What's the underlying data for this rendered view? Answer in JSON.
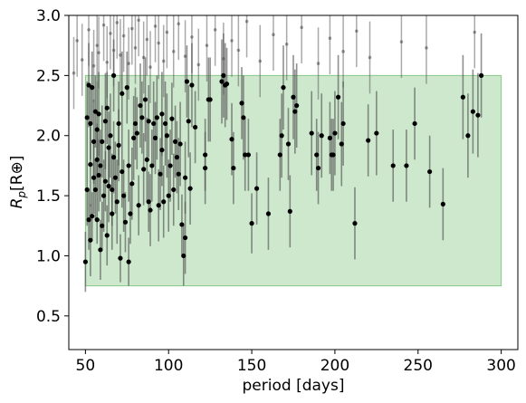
{
  "chart_data": {
    "type": "scatter",
    "xlabel": "period [days]",
    "ylabel_main": "R",
    "ylabel_sub": "p",
    "ylabel_unit": "[R⊕]",
    "xlim": [
      40,
      310
    ],
    "ylim": [
      0.22,
      3.0
    ],
    "xticks": [
      50,
      100,
      150,
      200,
      250,
      300
    ],
    "yticks": [
      0.5,
      1.0,
      1.5,
      2.0,
      2.5,
      3.0
    ],
    "ytick_labels": [
      "0.5",
      "1.0",
      "1.5",
      "2.0",
      "2.5",
      "3.0"
    ],
    "grid": false,
    "legend": "none",
    "region": {
      "x": [
        50,
        300
      ],
      "y": [
        0.75,
        2.5
      ],
      "color": "#2ca02c",
      "opacity": 0.24
    },
    "colors": {
      "points": "#000000",
      "errorbars": "#555555",
      "region": "#2ca02c"
    },
    "points": [
      [
        50,
        0.95,
        0.25
      ],
      [
        51,
        1.55,
        0.3
      ],
      [
        51,
        2.15,
        0.3
      ],
      [
        52,
        1.3,
        0.25
      ],
      [
        52,
        2.42,
        0.35
      ],
      [
        53,
        1.13,
        0.3
      ],
      [
        53,
        1.76,
        0.35
      ],
      [
        53,
        2.1,
        0.3
      ],
      [
        54,
        1.33,
        0.2
      ],
      [
        54,
        2.4,
        0.3
      ],
      [
        55,
        1.65,
        0.3
      ],
      [
        55,
        1.95,
        0.35
      ],
      [
        56,
        1.55,
        0.25
      ],
      [
        56,
        2.2,
        0.3
      ],
      [
        57,
        1.3,
        0.2
      ],
      [
        57,
        1.8,
        0.3
      ],
      [
        57,
        2.05,
        0.4
      ],
      [
        58,
        1.67,
        0.3
      ],
      [
        58,
        2.18,
        0.35
      ],
      [
        59,
        1.05,
        0.25
      ],
      [
        59,
        1.75,
        0.3
      ],
      [
        60,
        1.25,
        0.2
      ],
      [
        60,
        1.95,
        0.3
      ],
      [
        61,
        1.5,
        0.3
      ],
      [
        62,
        1.62,
        0.25
      ],
      [
        62,
        2.12,
        0.4
      ],
      [
        63,
        1.17,
        0.25
      ],
      [
        63,
        2.23,
        0.3
      ],
      [
        64,
        1.58,
        0.3
      ],
      [
        64,
        1.9,
        0.3
      ],
      [
        65,
        2.0,
        0.35
      ],
      [
        66,
        1.35,
        0.3
      ],
      [
        66,
        1.55,
        0.3
      ],
      [
        67,
        1.82,
        0.3
      ],
      [
        67,
        2.5,
        0.3
      ],
      [
        68,
        1.65,
        0.3
      ],
      [
        69,
        1.45,
        0.35
      ],
      [
        70,
        1.92,
        0.3
      ],
      [
        70,
        2.1,
        0.35
      ],
      [
        71,
        0.98,
        0.2
      ],
      [
        72,
        1.7,
        0.3
      ],
      [
        72,
        2.35,
        0.35
      ],
      [
        73,
        1.5,
        0.3
      ],
      [
        74,
        1.28,
        0.25
      ],
      [
        75,
        2.4,
        0.3
      ],
      [
        76,
        0.95,
        0.2
      ],
      [
        76,
        1.75,
        0.3
      ],
      [
        77,
        1.35,
        0.25
      ],
      [
        78,
        1.6,
        0.3
      ],
      [
        79,
        1.98,
        0.35
      ],
      [
        80,
        2.1,
        0.3
      ],
      [
        81,
        2.02,
        0.3
      ],
      [
        82,
        1.42,
        0.25
      ],
      [
        83,
        2.25,
        0.35
      ],
      [
        84,
        2.15,
        0.3
      ],
      [
        85,
        1.72,
        0.3
      ],
      [
        86,
        2.3,
        0.35
      ],
      [
        87,
        1.8,
        0.35
      ],
      [
        88,
        1.45,
        0.25
      ],
      [
        88,
        2.12,
        0.3
      ],
      [
        89,
        1.38,
        0.3
      ],
      [
        90,
        1.75,
        0.3
      ],
      [
        91,
        2.1,
        0.35
      ],
      [
        92,
        1.98,
        0.3
      ],
      [
        93,
        2.15,
        0.35
      ],
      [
        94,
        1.42,
        0.3
      ],
      [
        95,
        1.68,
        0.3
      ],
      [
        96,
        2.18,
        0.35
      ],
      [
        96,
        1.88,
        0.3
      ],
      [
        97,
        1.45,
        0.3
      ],
      [
        98,
        2.1,
        0.35
      ],
      [
        99,
        2.0,
        0.35
      ],
      [
        100,
        1.5,
        0.3
      ],
      [
        101,
        1.75,
        0.3
      ],
      [
        102,
        2.14,
        0.3
      ],
      [
        103,
        1.55,
        0.3
      ],
      [
        104,
        1.95,
        0.3
      ],
      [
        105,
        1.82,
        0.3
      ],
      [
        106,
        1.68,
        0.3
      ],
      [
        107,
        1.93,
        0.35
      ],
      [
        108,
        1.26,
        0.25
      ],
      [
        109,
        1.0,
        0.25
      ],
      [
        110,
        1.15,
        0.3
      ],
      [
        110,
        1.65,
        0.3
      ],
      [
        111,
        2.45,
        0.3
      ],
      [
        112,
        2.12,
        0.3
      ],
      [
        113,
        1.56,
        0.3
      ],
      [
        114,
        2.42,
        0.35
      ],
      [
        116,
        2.07,
        0.3
      ],
      [
        122,
        1.84,
        0.3
      ],
      [
        122,
        1.73,
        0.3
      ],
      [
        124,
        2.3,
        0.35
      ],
      [
        125,
        2.3,
        0.35
      ],
      [
        132,
        2.45,
        0.35
      ],
      [
        133,
        2.5,
        0.35
      ],
      [
        134,
        2.42,
        0.35
      ],
      [
        135,
        2.43,
        0.3
      ],
      [
        138,
        1.97,
        0.3
      ],
      [
        139,
        1.73,
        0.3
      ],
      [
        144,
        2.27,
        0.3
      ],
      [
        145,
        2.15,
        0.35
      ],
      [
        146,
        1.84,
        0.3
      ],
      [
        148,
        1.84,
        0.3
      ],
      [
        150,
        1.27,
        0.25
      ],
      [
        153,
        1.56,
        0.3
      ],
      [
        160,
        1.35,
        0.3
      ],
      [
        167,
        1.84,
        0.3
      ],
      [
        168,
        2.0,
        0.35
      ],
      [
        169,
        2.4,
        0.35
      ],
      [
        172,
        1.93,
        0.3
      ],
      [
        173,
        1.37,
        0.3
      ],
      [
        175,
        2.32,
        0.35
      ],
      [
        176,
        2.2,
        0.35
      ],
      [
        177,
        2.25,
        0.35
      ],
      [
        186,
        2.02,
        0.35
      ],
      [
        189,
        1.84,
        0.3
      ],
      [
        190,
        1.73,
        0.3
      ],
      [
        192,
        2.0,
        0.35
      ],
      [
        197,
        1.98,
        0.3
      ],
      [
        198,
        1.84,
        0.3
      ],
      [
        199,
        1.84,
        0.3
      ],
      [
        200,
        2.02,
        0.35
      ],
      [
        202,
        2.32,
        0.35
      ],
      [
        204,
        1.93,
        0.35
      ],
      [
        205,
        2.1,
        0.35
      ],
      [
        212,
        1.27,
        0.3
      ],
      [
        220,
        1.96,
        0.3
      ],
      [
        225,
        2.02,
        0.35
      ],
      [
        235,
        1.75,
        0.3
      ],
      [
        243,
        1.75,
        0.3
      ],
      [
        248,
        2.1,
        0.3
      ],
      [
        257,
        1.7,
        0.3
      ],
      [
        265,
        1.43,
        0.3
      ],
      [
        277,
        2.32,
        0.35
      ],
      [
        280,
        2.0,
        0.35
      ],
      [
        283,
        2.2,
        0.35
      ],
      [
        286,
        2.17,
        0.35
      ],
      [
        288,
        2.5,
        0.35
      ]
    ],
    "faint_points": [
      [
        43,
        2.52
      ],
      [
        45,
        2.79
      ],
      [
        48,
        2.63
      ],
      [
        52,
        2.88
      ],
      [
        55,
        2.58
      ],
      [
        57,
        2.75
      ],
      [
        58,
        2.69
      ],
      [
        61,
        2.92
      ],
      [
        63,
        2.61
      ],
      [
        65,
        2.85
      ],
      [
        67,
        2.71
      ],
      [
        69,
        2.94
      ],
      [
        71,
        2.67
      ],
      [
        73,
        2.83
      ],
      [
        76,
        2.6
      ],
      [
        78,
        2.89
      ],
      [
        80,
        2.73
      ],
      [
        82,
        2.96
      ],
      [
        85,
        2.65
      ],
      [
        87,
        2.8
      ],
      [
        89,
        2.57
      ],
      [
        92,
        2.91
      ],
      [
        94,
        2.77
      ],
      [
        97,
        2.62
      ],
      [
        99,
        2.86
      ],
      [
        103,
        2.7
      ],
      [
        106,
        2.93
      ],
      [
        110,
        2.66
      ],
      [
        114,
        2.82
      ],
      [
        118,
        2.59
      ],
      [
        123,
        2.75
      ],
      [
        128,
        2.88
      ],
      [
        133,
        2.64
      ],
      [
        138,
        2.79
      ],
      [
        142,
        2.71
      ],
      [
        147,
        2.95
      ],
      [
        155,
        2.62
      ],
      [
        163,
        2.84
      ],
      [
        171,
        2.76
      ],
      [
        180,
        2.9
      ],
      [
        190,
        2.6
      ],
      [
        197,
        2.81
      ],
      [
        205,
        2.7
      ],
      [
        213,
        2.87
      ],
      [
        221,
        2.65
      ],
      [
        240,
        2.78
      ],
      [
        255,
        2.73
      ],
      [
        284,
        2.86
      ]
    ]
  }
}
